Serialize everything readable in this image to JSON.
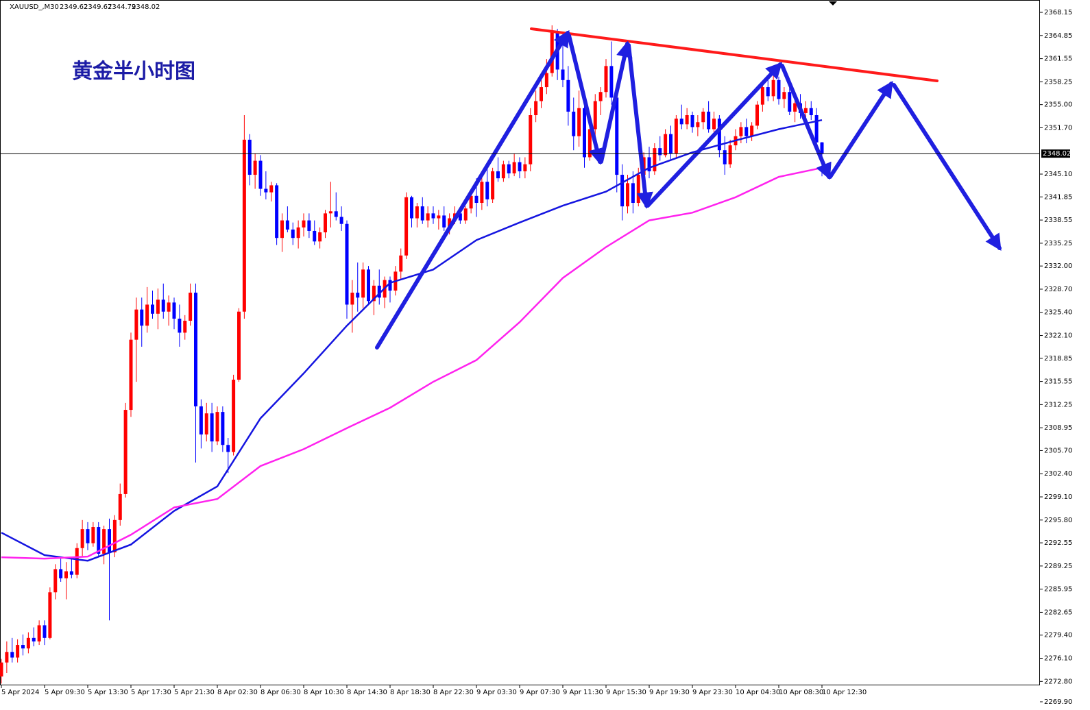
{
  "header": {
    "symbol": "XAUUSD_,M30",
    "ohlc": [
      2349.62,
      2349.67,
      2344.79,
      2348.02
    ]
  },
  "chart_data": {
    "type": "candlestick",
    "title": "黄金半小时图",
    "up_color": "#ff0000",
    "down_color": "#0000ff",
    "current_price": 2348.02,
    "ylim": [
      2269.9,
      2369.9
    ],
    "yticks": [
      {
        "value": 2269.9,
        "label": "2269.90"
      },
      {
        "value": 2272.8,
        "label": "2272.80"
      },
      {
        "value": 2276.1,
        "label": "2276.10"
      },
      {
        "value": 2279.4,
        "label": "2279.40"
      },
      {
        "value": 2282.65,
        "label": "2282.65"
      },
      {
        "value": 2285.95,
        "label": "2285.95"
      },
      {
        "value": 2289.25,
        "label": "2289.25"
      },
      {
        "value": 2292.55,
        "label": "2292.55"
      },
      {
        "value": 2295.8,
        "label": "2295.80"
      },
      {
        "value": 2299.1,
        "label": "2299.10"
      },
      {
        "value": 2302.4,
        "label": "2302.40"
      },
      {
        "value": 2305.7,
        "label": "2305.70"
      },
      {
        "value": 2308.95,
        "label": "2308.95"
      },
      {
        "value": 2312.25,
        "label": "2312.25"
      },
      {
        "value": 2315.55,
        "label": "2315.55"
      },
      {
        "value": 2318.85,
        "label": "2318.85"
      },
      {
        "value": 2322.1,
        "label": "2322.10"
      },
      {
        "value": 2325.4,
        "label": "2325.40"
      },
      {
        "value": 2328.7,
        "label": "2328.70"
      },
      {
        "value": 2332.0,
        "label": "2332.00"
      },
      {
        "value": 2335.25,
        "label": "2335.25"
      },
      {
        "value": 2338.55,
        "label": "2338.55"
      },
      {
        "value": 2341.85,
        "label": "2341.85"
      },
      {
        "value": 2345.1,
        "label": "2345.10"
      },
      {
        "value": 2351.7,
        "label": "2351.70"
      },
      {
        "value": 2355.0,
        "label": "2355.00"
      },
      {
        "value": 2358.25,
        "label": "2358.25"
      },
      {
        "value": 2361.55,
        "label": "2361.55"
      },
      {
        "value": 2364.85,
        "label": "2364.85"
      },
      {
        "value": 2368.15,
        "label": "2368.15"
      }
    ],
    "categories": [
      "5 Apr 2024",
      null,
      null,
      null,
      null,
      null,
      null,
      null,
      "5 Apr 09:30",
      null,
      null,
      null,
      null,
      null,
      null,
      null,
      "5 Apr 13:30",
      null,
      null,
      null,
      null,
      null,
      null,
      null,
      "5 Apr 17:30",
      null,
      null,
      null,
      null,
      null,
      null,
      null,
      "5 Apr 21:30",
      null,
      null,
      null,
      null,
      null,
      null,
      null,
      "8 Apr 02:30",
      null,
      null,
      null,
      null,
      null,
      null,
      null,
      "8 Apr 06:30",
      null,
      null,
      null,
      null,
      null,
      null,
      null,
      "8 Apr 10:30",
      null,
      null,
      null,
      null,
      null,
      null,
      null,
      "8 Apr 14:30",
      null,
      null,
      null,
      null,
      null,
      null,
      null,
      "8 Apr 18:30",
      null,
      null,
      null,
      null,
      null,
      null,
      null,
      "8 Apr 22:30",
      null,
      null,
      null,
      null,
      null,
      null,
      null,
      "9 Apr 03:30",
      null,
      null,
      null,
      null,
      null,
      null,
      null,
      "9 Apr 07:30",
      null,
      null,
      null,
      null,
      null,
      null,
      null,
      "9 Apr 11:30",
      null,
      null,
      null,
      null,
      null,
      null,
      null,
      "9 Apr 15:30",
      null,
      null,
      null,
      null,
      null,
      null,
      null,
      "9 Apr 19:30",
      null,
      null,
      null,
      null,
      null,
      null,
      null,
      "9 Apr 23:30",
      null,
      null,
      null,
      null,
      null,
      null,
      null,
      "10 Apr 04:30",
      null,
      null,
      null,
      null,
      null,
      null,
      null,
      "10 Apr 08:30",
      null,
      null,
      null,
      null,
      null,
      null,
      null,
      "10 Apr 12:30"
    ],
    "candles": [
      [
        2273.5,
        2276,
        2272.5,
        2275.5
      ],
      [
        2275.5,
        2278.5,
        2274,
        2277
      ],
      [
        2277,
        2279,
        2275.5,
        2276.2
      ],
      [
        2276.2,
        2278.8,
        2275.5,
        2278
      ],
      [
        2278,
        2279.5,
        2276.5,
        2277.5
      ],
      [
        2277.5,
        2279.8,
        2276.8,
        2279
      ],
      [
        2279,
        2280.5,
        2277.8,
        2278.5
      ],
      [
        2278.5,
        2281.5,
        2278,
        2280.8
      ],
      [
        2280.8,
        2281.5,
        2278,
        2279
      ],
      [
        2279,
        2286.2,
        2278.8,
        2285.5
      ],
      [
        2285.5,
        2289.5,
        2284.5,
        2288.8
      ],
      [
        2288.8,
        2290.5,
        2287,
        2287.5
      ],
      [
        2287.5,
        2289.8,
        2284.5,
        2288.5
      ],
      [
        2288.5,
        2290.5,
        2287.5,
        2288
      ],
      [
        2288,
        2292.5,
        2287.5,
        2291.8
      ],
      [
        2291.8,
        2295.8,
        2290.5,
        2294.5
      ],
      [
        2294.5,
        2295.5,
        2291.5,
        2292.5
      ],
      [
        2292.5,
        2295.5,
        2292,
        2294.8
      ],
      [
        2294.8,
        2295.5,
        2290.5,
        2291
      ],
      [
        2291,
        2295,
        2289.5,
        2294.5
      ],
      [
        2294.5,
        2296,
        2281.5,
        2291.2
      ],
      [
        2291.2,
        2296.5,
        2290.5,
        2295.8
      ],
      [
        2295.8,
        2301,
        2295,
        2299.5
      ],
      [
        2299.5,
        2312.5,
        2299,
        2311.5
      ],
      [
        2311.5,
        2322.5,
        2310.5,
        2321.5
      ],
      [
        2321.5,
        2327.5,
        2315.5,
        2325.8
      ],
      [
        2325.8,
        2327.5,
        2320.5,
        2323.5
      ],
      [
        2323.5,
        2329,
        2322.5,
        2326.5
      ],
      [
        2326.5,
        2328.5,
        2324.5,
        2325.2
      ],
      [
        2325.2,
        2328.8,
        2323,
        2327.2
      ],
      [
        2327.2,
        2329.5,
        2324.5,
        2325.5
      ],
      [
        2325.5,
        2327.8,
        2323.5,
        2326.8
      ],
      [
        2326.8,
        2327.5,
        2323,
        2324.5
      ],
      [
        2324.5,
        2326.5,
        2320.5,
        2322.5
      ],
      [
        2322.5,
        2325,
        2321.5,
        2324.2
      ],
      [
        2324.2,
        2329.5,
        2323.5,
        2328.2
      ],
      [
        2328.2,
        2329.5,
        2304,
        2312
      ],
      [
        2312,
        2313,
        2306,
        2308
      ],
      [
        2308,
        2312.5,
        2307,
        2311
      ],
      [
        2311,
        2312.5,
        2305.5,
        2307
      ],
      [
        2307,
        2312,
        2306.5,
        2311.2
      ],
      [
        2311.2,
        2312,
        2305.5,
        2306.5
      ],
      [
        2306.5,
        2307.5,
        2302.5,
        2305.5
      ],
      [
        2305.5,
        2316.5,
        2305,
        2315.8
      ],
      [
        2315.8,
        2326,
        2315.5,
        2325.5
      ],
      [
        2325.5,
        2353.5,
        2324.5,
        2350
      ],
      [
        2350,
        2350.8,
        2343.5,
        2345
      ],
      [
        2345,
        2348,
        2343,
        2347
      ],
      [
        2347,
        2347.8,
        2342,
        2343
      ],
      [
        2343,
        2345.5,
        2341.5,
        2342.5
      ],
      [
        2342.5,
        2344,
        2341.2,
        2343.5
      ],
      [
        2343.5,
        2343.8,
        2335,
        2336
      ],
      [
        2336,
        2339.5,
        2334,
        2338.5
      ],
      [
        2338.5,
        2340.5,
        2336.8,
        2337.2
      ],
      [
        2337.2,
        2338.2,
        2335,
        2336
      ],
      [
        2336,
        2338.5,
        2334.5,
        2337.5
      ],
      [
        2337.5,
        2339.5,
        2336.2,
        2338.5
      ],
      [
        2338.5,
        2339.5,
        2336,
        2337
      ],
      [
        2337,
        2338.5,
        2335,
        2335.5
      ],
      [
        2335.5,
        2337.5,
        2334.5,
        2336.8
      ],
      [
        2336.8,
        2340,
        2336,
        2339.5
      ],
      [
        2339.5,
        2344,
        2337.5,
        2339.8
      ],
      [
        2339.8,
        2342.5,
        2338.5,
        2339
      ],
      [
        2339,
        2340.5,
        2337,
        2338
      ],
      [
        2338,
        2338.5,
        2324.5,
        2326.5
      ],
      [
        2326.5,
        2330,
        2322.5,
        2328.2
      ],
      [
        2328.2,
        2332.5,
        2325.5,
        2327.5
      ],
      [
        2327.5,
        2332.5,
        2326,
        2331.5
      ],
      [
        2331.5,
        2332,
        2326.5,
        2327
      ],
      [
        2327,
        2330,
        2325,
        2329.2
      ],
      [
        2329.2,
        2331.5,
        2326.5,
        2327.5
      ],
      [
        2327.5,
        2330.5,
        2326,
        2330
      ],
      [
        2330,
        2330.5,
        2326.8,
        2328.5
      ],
      [
        2328.5,
        2332,
        2327.8,
        2331.2
      ],
      [
        2331.2,
        2334.5,
        2330,
        2333.5
      ],
      [
        2333.5,
        2342.5,
        2333,
        2341.8
      ],
      [
        2341.8,
        2342,
        2337.5,
        2338.8
      ],
      [
        2338.8,
        2341,
        2337.5,
        2340.5
      ],
      [
        2340.5,
        2341.8,
        2338,
        2338.5
      ],
      [
        2338.5,
        2340.5,
        2337.5,
        2339.5
      ],
      [
        2339.5,
        2340.5,
        2338,
        2338.8
      ],
      [
        2338.8,
        2340,
        2337.2,
        2339.2
      ],
      [
        2339.2,
        2340.5,
        2337,
        2337.5
      ],
      [
        2337.5,
        2339.5,
        2336.5,
        2338.8
      ],
      [
        2338.8,
        2340.5,
        2338,
        2339.5
      ],
      [
        2339.5,
        2340,
        2338,
        2338.5
      ],
      [
        2338.5,
        2340.5,
        2338,
        2340.2
      ],
      [
        2340.2,
        2342.5,
        2339.5,
        2342
      ],
      [
        2342,
        2344.5,
        2339,
        2341
      ],
      [
        2341,
        2344.5,
        2340,
        2344
      ],
      [
        2344,
        2346.5,
        2340.5,
        2341.5
      ],
      [
        2341.5,
        2346,
        2341,
        2345.5
      ],
      [
        2345.5,
        2347.5,
        2344,
        2344.5
      ],
      [
        2344.5,
        2347,
        2344,
        2346.5
      ],
      [
        2346.5,
        2347,
        2344.5,
        2345.2
      ],
      [
        2345.2,
        2348,
        2344.8,
        2346.8
      ],
      [
        2346.8,
        2347.5,
        2344.5,
        2345.5
      ],
      [
        2345.5,
        2347.5,
        2344.5,
        2346.5
      ],
      [
        2346.5,
        2354.5,
        2345.5,
        2353.5
      ],
      [
        2353.5,
        2357,
        2352.5,
        2355.5
      ],
      [
        2355.5,
        2358.5,
        2354.5,
        2357.5
      ],
      [
        2357.5,
        2361.5,
        2356.5,
        2359.5
      ],
      [
        2359.5,
        2366.3,
        2359,
        2365.5
      ],
      [
        2365.5,
        2365.8,
        2358.5,
        2360
      ],
      [
        2360,
        2363.5,
        2357.5,
        2358.5
      ],
      [
        2358.5,
        2360.5,
        2352,
        2354
      ],
      [
        2354,
        2356,
        2348.5,
        2350.5
      ],
      [
        2350.5,
        2357,
        2349,
        2354.5
      ],
      [
        2354.5,
        2355,
        2346,
        2347.5
      ],
      [
        2347.5,
        2352,
        2347,
        2351.5
      ],
      [
        2351.5,
        2356.5,
        2350.5,
        2355.5
      ],
      [
        2355.5,
        2357.5,
        2353.5,
        2356.8
      ],
      [
        2356.8,
        2361.5,
        2356,
        2360.5
      ],
      [
        2360.5,
        2364,
        2355,
        2356
      ],
      [
        2356,
        2357,
        2342.5,
        2345
      ],
      [
        2345,
        2346.5,
        2338.5,
        2340.5
      ],
      [
        2340.5,
        2345,
        2339.5,
        2343.8
      ],
      [
        2343.8,
        2345.5,
        2339.5,
        2341
      ],
      [
        2341,
        2346,
        2340.5,
        2345
      ],
      [
        2345,
        2348.2,
        2343.5,
        2347.5
      ],
      [
        2347.5,
        2349,
        2344.5,
        2345.5
      ],
      [
        2345.5,
        2349.5,
        2345,
        2348.8
      ],
      [
        2348.8,
        2350.5,
        2347,
        2347.8
      ],
      [
        2347.8,
        2351.5,
        2347.5,
        2350.8
      ],
      [
        2350.8,
        2352,
        2347.2,
        2348
      ],
      [
        2348,
        2353.5,
        2347.5,
        2353
      ],
      [
        2353,
        2355,
        2351.5,
        2352.2
      ],
      [
        2352.2,
        2354.5,
        2351.5,
        2353.5
      ],
      [
        2353.5,
        2354,
        2351,
        2351.8
      ],
      [
        2351.8,
        2353.5,
        2350.5,
        2352.5
      ],
      [
        2352.5,
        2354.5,
        2351.5,
        2354
      ],
      [
        2354,
        2355.5,
        2351,
        2351.5
      ],
      [
        2351.5,
        2354,
        2350.5,
        2353
      ],
      [
        2353,
        2353.5,
        2347.5,
        2348.5
      ],
      [
        2348.5,
        2350.5,
        2345,
        2346.5
      ],
      [
        2346.5,
        2350,
        2346,
        2349.2
      ],
      [
        2349.2,
        2351.5,
        2348.5,
        2350.5
      ],
      [
        2350.5,
        2352.5,
        2349.5,
        2351.8
      ],
      [
        2351.8,
        2353,
        2349.5,
        2350.5
      ],
      [
        2350.5,
        2352.5,
        2349.8,
        2352
      ],
      [
        2352,
        2355.5,
        2351.5,
        2355
      ],
      [
        2355,
        2358,
        2354,
        2357.5
      ],
      [
        2357.5,
        2359,
        2355.5,
        2356.2
      ],
      [
        2356.2,
        2359.5,
        2355.5,
        2358.5
      ],
      [
        2358.5,
        2359,
        2355,
        2355.8
      ],
      [
        2355.8,
        2357.5,
        2354.5,
        2356.8
      ],
      [
        2356.8,
        2357.5,
        2353.5,
        2354
      ],
      [
        2354,
        2356,
        2352.5,
        2355.2
      ],
      [
        2355.2,
        2356.5,
        2353,
        2353.8
      ],
      [
        2353.8,
        2355.5,
        2352.5,
        2354.5
      ],
      [
        2354.5,
        2355.5,
        2352.8,
        2353.5
      ],
      [
        2353.5,
        2354.5,
        2348.5,
        2349.62
      ],
      [
        2349.62,
        2349.67,
        2344.79,
        2348.02
      ]
    ],
    "series": [
      {
        "color": "#1515e0",
        "x": [
          0,
          8,
          16,
          24,
          32,
          40,
          48,
          56,
          64,
          72,
          80,
          88,
          96,
          104,
          112,
          120,
          128,
          136,
          144,
          152
        ],
        "values": [
          2294,
          2290.8,
          2290,
          2292.3,
          2297.1,
          2300.6,
          2310.3,
          2316.7,
          2323.5,
          2329.6,
          2331.5,
          2335.7,
          2338.2,
          2340.6,
          2342.6,
          2346,
          2348.2,
          2349.9,
          2351.5,
          2352.8
        ]
      },
      {
        "color": "#ff22ee",
        "x": [
          0,
          8,
          16,
          24,
          32,
          40,
          48,
          56,
          64,
          72,
          80,
          88,
          96,
          104,
          112,
          120,
          128,
          136,
          144,
          152
        ],
        "values": [
          2290.5,
          2290.3,
          2290.6,
          2293.7,
          2297.6,
          2298.8,
          2303.5,
          2305.9,
          2308.9,
          2311.8,
          2315.5,
          2318.6,
          2324,
          2330.3,
          2334.7,
          2338.5,
          2339.6,
          2341.8,
          2344.7,
          2346
        ]
      }
    ]
  }
}
